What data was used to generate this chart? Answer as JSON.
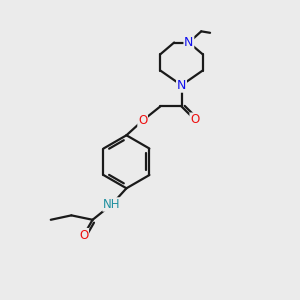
{
  "bg_color": "#ebebeb",
  "bond_color": "#1a1a1a",
  "N_color": "#1010ee",
  "O_color": "#ee1010",
  "NH_color": "#2090a0",
  "line_width": 1.6,
  "figsize": [
    3.0,
    3.0
  ],
  "dpi": 100,
  "xlim": [
    0,
    10
  ],
  "ylim": [
    0,
    10
  ]
}
